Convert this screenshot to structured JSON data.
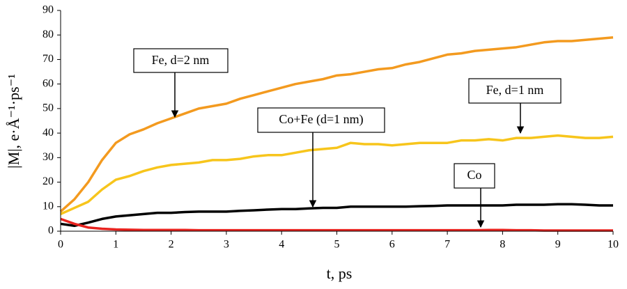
{
  "chart_data": {
    "type": "line",
    "x_label": "t, ps",
    "y_label": "|M|, e·Å⁻¹·ps⁻¹",
    "x": [
      0,
      0.25,
      0.5,
      0.75,
      1,
      1.25,
      1.5,
      1.75,
      2,
      2.25,
      2.5,
      2.75,
      3,
      3.25,
      3.5,
      3.75,
      4,
      4.25,
      4.5,
      4.75,
      5,
      5.25,
      5.5,
      5.75,
      6,
      6.25,
      6.5,
      6.75,
      7,
      7.25,
      7.5,
      7.75,
      8,
      8.25,
      8.5,
      8.75,
      9,
      9.25,
      9.5,
      9.75,
      10
    ],
    "series": [
      {
        "name": "Fe, d=2 nm",
        "color": "#f39a1f",
        "values": [
          8,
          13,
          20,
          29,
          36,
          39.5,
          41.5,
          44,
          46,
          48,
          50,
          51,
          52,
          54,
          55.5,
          57,
          58.5,
          60,
          61,
          62,
          63.5,
          64,
          65,
          66,
          66.5,
          68,
          69,
          70.5,
          72,
          72.5,
          73.5,
          74,
          74.5,
          75,
          76,
          77,
          77.5,
          77.5,
          78,
          78.5,
          79
        ]
      },
      {
        "name": "Fe, d=1 nm",
        "color": "#f7c51c",
        "values": [
          7,
          9.5,
          12,
          17,
          21,
          22.5,
          24.5,
          26,
          27,
          27.5,
          28,
          29,
          29,
          29.5,
          30.5,
          31,
          31,
          32,
          33,
          33.5,
          34,
          36,
          35.5,
          35.5,
          35,
          35.5,
          36,
          36,
          36,
          37,
          37,
          37.5,
          37,
          38,
          38,
          38.5,
          39,
          38.5,
          38,
          38,
          38.5
        ]
      },
      {
        "name": "Co+Fe (d=1 nm)",
        "color": "#000000",
        "values": [
          3,
          2.2,
          3.5,
          5,
          6,
          6.5,
          7,
          7.5,
          7.5,
          7.8,
          8,
          8,
          8,
          8.3,
          8.5,
          8.8,
          9,
          9,
          9.3,
          9.5,
          9.5,
          10,
          10,
          10,
          10,
          10,
          10.2,
          10.3,
          10.5,
          10.5,
          10.5,
          10.5,
          10.5,
          10.8,
          10.8,
          10.8,
          11,
          11,
          10.8,
          10.5,
          10.5
        ]
      },
      {
        "name": "Co",
        "color": "#e8231f",
        "values": [
          5,
          3,
          1.5,
          1,
          0.7,
          0.6,
          0.5,
          0.5,
          0.5,
          0.5,
          0.4,
          0.4,
          0.4,
          0.4,
          0.4,
          0.4,
          0.4,
          0.4,
          0.4,
          0.4,
          0.4,
          0.4,
          0.4,
          0.4,
          0.4,
          0.4,
          0.4,
          0.4,
          0.4,
          0.4,
          0.4,
          0.5,
          0.5,
          0.4,
          0.4,
          0.3,
          0.3,
          0.3,
          0.3,
          0.3,
          0.3
        ]
      }
    ],
    "xlim": [
      0,
      10
    ],
    "xticks": [
      0,
      1,
      2,
      3,
      4,
      5,
      6,
      7,
      8,
      9,
      10
    ],
    "ylim": [
      0,
      90
    ],
    "yticks": [
      0,
      10,
      20,
      30,
      40,
      50,
      60,
      70,
      80,
      90
    ],
    "grid": false
  }
}
